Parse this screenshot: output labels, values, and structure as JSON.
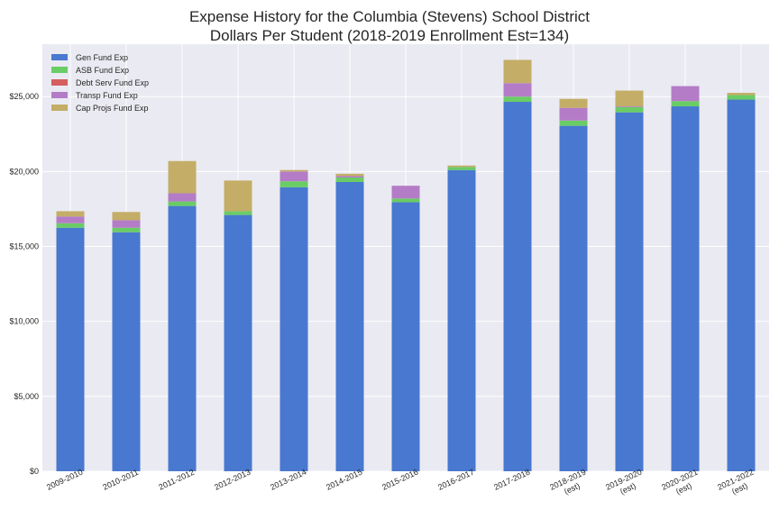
{
  "chart_data": {
    "type": "bar",
    "stacked": true,
    "title": "Expense History for the Columbia (Stevens) School District",
    "subtitle": "Dollars Per Student (2018-2019 Enrollment Est=134)",
    "xlabel": "",
    "ylabel": "",
    "ylim": [
      0,
      28500
    ],
    "yticks": [
      0,
      5000,
      10000,
      15000,
      20000,
      25000
    ],
    "ytick_labels": [
      "$0",
      "$5,000",
      "$10,000",
      "$15,000",
      "$20,000",
      "$25,000"
    ],
    "grid": true,
    "legend_position": "top-left",
    "categories": [
      [
        "2009-2010"
      ],
      [
        "2010-2011"
      ],
      [
        "2011-2012"
      ],
      [
        "2012-2013"
      ],
      [
        "2013-2014"
      ],
      [
        "2014-2015"
      ],
      [
        "2015-2016"
      ],
      [
        "2016-2017"
      ],
      [
        "2017-2018"
      ],
      [
        "2018-2019",
        "(est)"
      ],
      [
        "2019-2020",
        "(est)"
      ],
      [
        "2020-2021",
        "(est)"
      ],
      [
        "2021-2022",
        "(est)"
      ]
    ],
    "series": [
      {
        "name": "Gen Fund Exp",
        "color": "#4878cf",
        "values": [
          16250,
          15950,
          17700,
          17100,
          18950,
          19300,
          17950,
          20100,
          24650,
          23050,
          23950,
          24350,
          24800
        ]
      },
      {
        "name": "ASB Fund Exp",
        "color": "#6acc65",
        "values": [
          300,
          300,
          300,
          250,
          400,
          300,
          250,
          200,
          350,
          350,
          350,
          350,
          300
        ]
      },
      {
        "name": "Debt Serv Fund Exp",
        "color": "#d65f5f",
        "values": [
          0,
          0,
          0,
          0,
          0,
          0,
          0,
          0,
          0,
          0,
          0,
          0,
          0
        ]
      },
      {
        "name": "Transp Fund Exp",
        "color": "#b47cc7",
        "values": [
          450,
          500,
          550,
          0,
          650,
          100,
          850,
          0,
          900,
          850,
          50,
          1000,
          0
        ]
      },
      {
        "name": "Cap Projs Fund Exp",
        "color": "#c4ad66",
        "values": [
          350,
          550,
          2150,
          2050,
          100,
          150,
          0,
          100,
          1550,
          600,
          1050,
          0,
          150
        ]
      }
    ]
  }
}
